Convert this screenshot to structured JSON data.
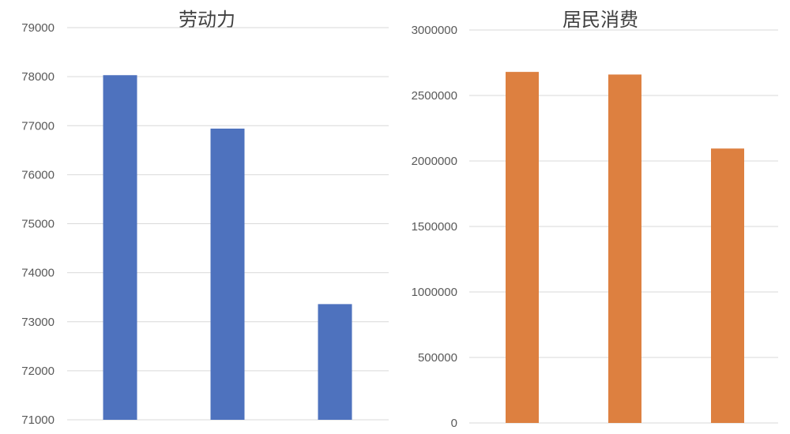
{
  "chart_data": [
    {
      "type": "bar",
      "title": "劳动力",
      "categories": [
        "",
        "",
        ""
      ],
      "values": [
        78030,
        76940,
        73360
      ],
      "ylim": [
        71000,
        79000
      ],
      "yticks": [
        "71000",
        "72000",
        "73000",
        "74000",
        "75000",
        "76000",
        "77000",
        "78000",
        "79000"
      ],
      "color": "#4e72be",
      "grid": true,
      "xlabel": "",
      "ylabel": ""
    },
    {
      "type": "bar",
      "title": "居民消费",
      "categories": [
        "",
        "",
        ""
      ],
      "values": [
        2680000,
        2660000,
        2095000
      ],
      "ylim": [
        0,
        3000000
      ],
      "yticks": [
        "0",
        "500000",
        "1000000",
        "1500000",
        "2000000",
        "2500000",
        "3000000"
      ],
      "color": "#dd8040",
      "grid": true,
      "xlabel": "",
      "ylabel": ""
    }
  ]
}
